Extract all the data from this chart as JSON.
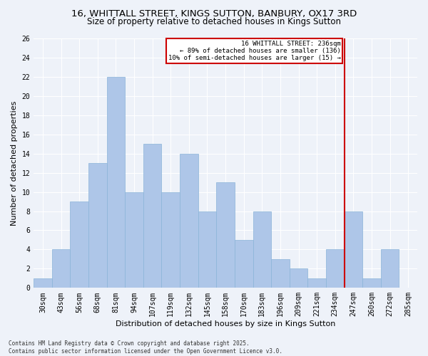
{
  "title_line1": "16, WHITTALL STREET, KINGS SUTTON, BANBURY, OX17 3RD",
  "title_line2": "Size of property relative to detached houses in Kings Sutton",
  "xlabel": "Distribution of detached houses by size in Kings Sutton",
  "ylabel": "Number of detached properties",
  "categories": [
    "30sqm",
    "43sqm",
    "56sqm",
    "68sqm",
    "81sqm",
    "94sqm",
    "107sqm",
    "119sqm",
    "132sqm",
    "145sqm",
    "158sqm",
    "170sqm",
    "183sqm",
    "196sqm",
    "209sqm",
    "221sqm",
    "234sqm",
    "247sqm",
    "260sqm",
    "272sqm",
    "285sqm"
  ],
  "values": [
    1,
    4,
    9,
    13,
    22,
    10,
    15,
    10,
    14,
    8,
    11,
    5,
    8,
    3,
    2,
    1,
    4,
    8,
    1,
    4,
    0
  ],
  "bar_color": "#aec6e8",
  "bar_edge_color": "#8ab4d8",
  "vline_color": "#cc0000",
  "annotation_text": "16 WHITTALL STREET: 236sqm\n← 89% of detached houses are smaller (136)\n10% of semi-detached houses are larger (15) →",
  "annotation_box_color": "#cc0000",
  "ylim": [
    0,
    26
  ],
  "yticks": [
    0,
    2,
    4,
    6,
    8,
    10,
    12,
    14,
    16,
    18,
    20,
    22,
    24,
    26
  ],
  "footnote": "Contains HM Land Registry data © Crown copyright and database right 2025.\nContains public sector information licensed under the Open Government Licence v3.0.",
  "bg_color": "#eef2f9",
  "grid_color": "#ffffff",
  "title_fontsize": 9.5,
  "subtitle_fontsize": 8.5,
  "tick_fontsize": 7,
  "ylabel_fontsize": 8,
  "xlabel_fontsize": 8,
  "footnote_fontsize": 5.5
}
